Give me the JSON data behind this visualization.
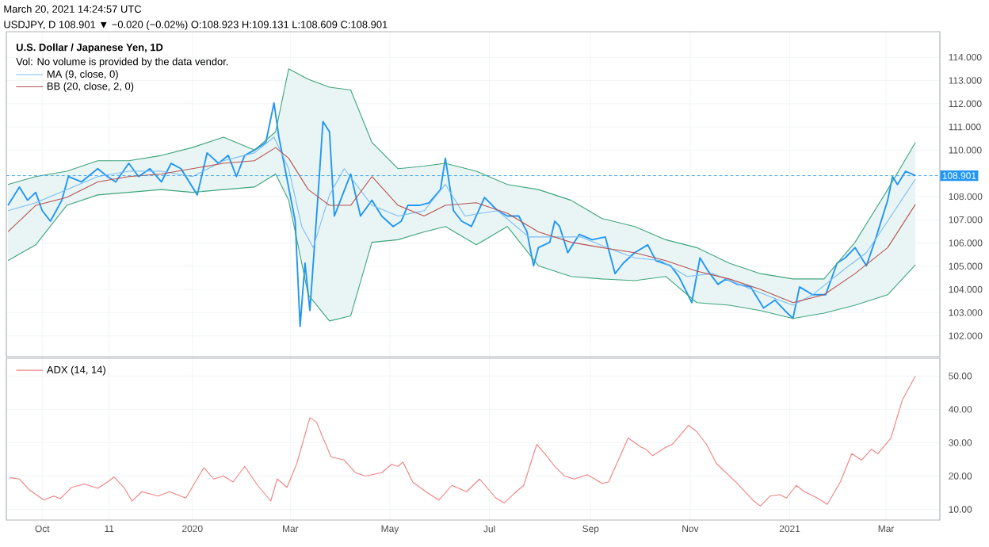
{
  "chart_data": [
    {
      "type": "line",
      "title": "U.S. Dollar / Japanese Yen, 1D",
      "annotations": [
        "March 20, 2021 14:24:57 UTC",
        "USDJPY, D 108.901 ▼ −0.020 (−0.02%) O:108.923 H:109.131 L:108.609 C:108.901",
        "Vol: No volume is provided by the data vendor."
      ],
      "xlim": [
        "2019-09-09",
        "2021-04-03"
      ],
      "xticks": [
        {
          "value": "2019-10-01",
          "label": null
        },
        {
          "value": "2019-11-11",
          "label": null
        },
        {
          "value": "2020-01-01",
          "label": null
        },
        {
          "value": "2020-03-01",
          "label": null
        },
        {
          "value": "2020-05-01",
          "label": null
        },
        {
          "value": "2020-07-01",
          "label": null
        },
        {
          "value": "2020-09-01",
          "label": null
        },
        {
          "value": "2020-11-01",
          "label": null
        },
        {
          "value": "2021-01-01",
          "label": null
        },
        {
          "value": "2021-03-01",
          "label": null
        }
      ],
      "ylim": [
        101.1,
        115.1
      ],
      "yticks": [
        {
          "value": 102,
          "label": "102.000"
        },
        {
          "value": 103,
          "label": "103.000"
        },
        {
          "value": 104,
          "label": "104.000"
        },
        {
          "value": 105,
          "label": "105.000"
        },
        {
          "value": 106,
          "label": "106.000"
        },
        {
          "value": 107,
          "label": "107.000"
        },
        {
          "value": 108,
          "label": "108.000"
        },
        {
          "value": 110,
          "label": "110.000"
        },
        {
          "value": 111,
          "label": "111.000"
        },
        {
          "value": 112,
          "label": "112.000"
        },
        {
          "value": 113,
          "label": "113.000"
        },
        {
          "value": 114,
          "label": "114.000"
        }
      ],
      "grid": true,
      "legend": "top left",
      "tick_labels": "y",
      "ref_lines": [
        {
          "axis": "y",
          "value": 108.901,
          "label": "108.901",
          "color": "#2196f3",
          "line_style": "dashed"
        }
      ],
      "series": [
        {
          "color": "#2196f3",
          "x": [
            "2019-09-10",
            "2019-09-17",
            "2019-09-22",
            "2019-09-27",
            "2019-10-01",
            "2019-10-06",
            "2019-10-13",
            "2019-10-17",
            "2019-10-25",
            "2019-11-04",
            "2019-11-10",
            "2019-11-15",
            "2019-11-23",
            "2019-11-29",
            "2019-12-06",
            "2019-12-13",
            "2019-12-19",
            "2019-12-25",
            "2020-01-04",
            "2020-01-10",
            "2020-01-17",
            "2020-01-23",
            "2020-01-28",
            "2020-02-02",
            "2020-02-08",
            "2020-02-15",
            "2020-02-20",
            "2020-02-23",
            "2020-02-28",
            "2020-03-04",
            "2020-03-07",
            "2020-03-10",
            "2020-03-13",
            "2020-03-18",
            "2020-03-21",
            "2020-03-25",
            "2020-03-28",
            "2020-04-02",
            "2020-04-07",
            "2020-04-13",
            "2020-04-20",
            "2020-04-26",
            "2020-05-03",
            "2020-05-08",
            "2020-05-12",
            "2020-05-19",
            "2020-05-25",
            "2020-06-01",
            "2020-06-04",
            "2020-06-09",
            "2020-06-14",
            "2020-06-20",
            "2020-06-28",
            "2020-07-06",
            "2020-07-12",
            "2020-07-19",
            "2020-07-24",
            "2020-07-28",
            "2020-07-31",
            "2020-08-07",
            "2020-08-10",
            "2020-08-13",
            "2020-08-18",
            "2020-08-25",
            "2020-09-02",
            "2020-09-10",
            "2020-09-16",
            "2020-09-21",
            "2020-09-28",
            "2020-10-06",
            "2020-10-11",
            "2020-10-20",
            "2020-10-25",
            "2020-11-02",
            "2020-11-07",
            "2020-11-12",
            "2020-11-18",
            "2020-11-23",
            "2020-11-30",
            "2020-12-08",
            "2020-12-16",
            "2020-12-23",
            "2020-12-29",
            "2021-01-03",
            "2021-01-07",
            "2021-01-15",
            "2021-01-23",
            "2021-01-30",
            "2021-02-04",
            "2021-02-10",
            "2021-02-17",
            "2021-02-23",
            "2021-03-02",
            "2021-03-05",
            "2021-03-08",
            "2021-03-13",
            "2021-03-19"
          ],
          "values": [
            107.62,
            108.41,
            107.84,
            108.18,
            107.39,
            106.94,
            107.84,
            108.86,
            108.63,
            109.2,
            108.86,
            108.63,
            109.43,
            108.86,
            109.2,
            108.63,
            109.43,
            109.2,
            108.07,
            109.88,
            109.43,
            109.77,
            108.86,
            109.77,
            110.0,
            110.33,
            112.03,
            110.56,
            108.75,
            106.94,
            102.41,
            105.13,
            103.09,
            108.07,
            111.23,
            110.79,
            107.16,
            108.07,
            108.97,
            107.16,
            107.84,
            107.16,
            106.71,
            106.94,
            107.62,
            107.62,
            107.73,
            108.3,
            109.65,
            107.39,
            106.94,
            106.71,
            107.96,
            107.39,
            107.16,
            107.16,
            106.48,
            105.02,
            105.8,
            106.03,
            106.94,
            106.71,
            105.58,
            106.37,
            106.14,
            106.26,
            104.68,
            105.13,
            105.58,
            105.92,
            105.24,
            105.02,
            104.56,
            103.43,
            105.36,
            104.79,
            104.22,
            104.45,
            104.22,
            104.11,
            103.2,
            103.54,
            103.09,
            102.75,
            104.11,
            103.77,
            103.77,
            105.13,
            105.36,
            105.8,
            105.02,
            106.26,
            107.84,
            108.86,
            108.52,
            109.09,
            108.9
          ]
        },
        {
          "name": "MA (9, close, 0)",
          "color": "#7cbcf4",
          "x": [
            "2019-09-10",
            "2019-09-27",
            "2019-10-16",
            "2019-11-04",
            "2019-11-23",
            "2019-12-13",
            "2020-01-01",
            "2020-01-20",
            "2020-02-08",
            "2020-02-20",
            "2020-02-29",
            "2020-03-08",
            "2020-03-15",
            "2020-03-25",
            "2020-04-03",
            "2020-04-20",
            "2020-05-06",
            "2020-05-22",
            "2020-06-04",
            "2020-06-16",
            "2020-06-26",
            "2020-07-06",
            "2020-07-25",
            "2020-08-10",
            "2020-08-26",
            "2020-09-15",
            "2020-09-28",
            "2020-10-14",
            "2020-10-30",
            "2020-11-15",
            "2020-12-01",
            "2020-12-21",
            "2021-01-03",
            "2021-01-15",
            "2021-02-04",
            "2021-02-17",
            "2021-03-02",
            "2021-03-19"
          ],
          "values": [
            107.39,
            107.73,
            108.3,
            108.86,
            109.09,
            109.09,
            108.86,
            109.54,
            109.88,
            110.56,
            109.2,
            106.71,
            105.8,
            108.07,
            109.2,
            107.62,
            107.16,
            107.39,
            108.52,
            107.16,
            107.28,
            107.39,
            106.26,
            106.26,
            106.26,
            105.69,
            105.36,
            105.24,
            104.56,
            104.68,
            104.22,
            103.66,
            103.32,
            103.77,
            104.9,
            105.58,
            106.94,
            108.75
          ]
        },
        {
          "name": "BB (20, close, 2, 0)",
          "color": "#b5524e",
          "x": [
            "2019-09-10",
            "2019-09-27",
            "2019-10-16",
            "2019-11-04",
            "2019-11-23",
            "2019-12-13",
            "2020-01-01",
            "2020-01-20",
            "2020-02-08",
            "2020-02-21",
            "2020-02-29",
            "2020-03-12",
            "2020-03-25",
            "2020-04-07",
            "2020-04-20",
            "2020-05-06",
            "2020-05-22",
            "2020-06-04",
            "2020-06-23",
            "2020-07-12",
            "2020-07-31",
            "2020-08-20",
            "2020-09-08",
            "2020-09-28",
            "2020-10-17",
            "2020-11-05",
            "2020-11-25",
            "2020-12-14",
            "2021-01-03",
            "2021-01-22",
            "2021-02-10",
            "2021-03-02",
            "2021-03-19"
          ],
          "values": [
            106.48,
            107.62,
            107.96,
            108.63,
            108.86,
            108.97,
            109.2,
            109.43,
            109.54,
            110.11,
            109.65,
            108.3,
            107.62,
            107.62,
            108.86,
            107.62,
            107.16,
            107.62,
            107.73,
            107.28,
            106.48,
            106.03,
            105.8,
            105.58,
            105.24,
            104.79,
            104.45,
            104.0,
            103.43,
            103.77,
            104.68,
            105.8,
            107.66
          ],
          "lower": [
            105.24,
            105.92,
            107.62,
            108.07,
            108.18,
            108.3,
            108.18,
            108.3,
            108.41,
            108.97,
            107.84,
            103.77,
            102.64,
            102.86,
            106.03,
            106.14,
            106.48,
            106.71,
            105.92,
            106.71,
            105.02,
            104.56,
            104.45,
            104.38,
            104.56,
            103.43,
            103.32,
            103.09,
            102.75,
            102.98,
            103.32,
            103.77,
            105.06
          ],
          "upper": [
            108.52,
            108.86,
            109.09,
            109.54,
            109.54,
            109.77,
            110.11,
            110.56,
            110.0,
            110.79,
            113.5,
            113.05,
            112.71,
            112.59,
            110.33,
            109.2,
            109.31,
            109.43,
            109.09,
            108.52,
            108.3,
            107.84,
            107.05,
            106.71,
            106.14,
            105.8,
            105.13,
            104.68,
            104.45,
            104.45,
            106.03,
            108.3,
            110.33
          ]
        },
        {
          "color": "#3da57a",
          "x": [
            "2019-09-10",
            "2019-09-27",
            "2019-10-16",
            "2019-11-04",
            "2019-11-23",
            "2019-12-13",
            "2020-01-01",
            "2020-01-20",
            "2020-02-08",
            "2020-02-21",
            "2020-02-29",
            "2020-03-12",
            "2020-03-25",
            "2020-04-07",
            "2020-04-20",
            "2020-05-06",
            "2020-05-22",
            "2020-06-04",
            "2020-06-23",
            "2020-07-12",
            "2020-07-31",
            "2020-08-20",
            "2020-09-08",
            "2020-09-28",
            "2020-10-17",
            "2020-11-05",
            "2020-11-25",
            "2020-12-14",
            "2021-01-03",
            "2021-01-22",
            "2021-02-10",
            "2021-03-02",
            "2021-03-19"
          ],
          "values": [
            108.52,
            108.86,
            109.09,
            109.54,
            109.54,
            109.77,
            110.11,
            110.56,
            110.0,
            110.79,
            113.5,
            113.05,
            112.71,
            112.59,
            110.33,
            109.2,
            109.31,
            109.43,
            109.09,
            108.52,
            108.3,
            107.84,
            107.05,
            106.71,
            106.14,
            105.8,
            105.13,
            104.68,
            104.45,
            104.45,
            106.03,
            108.3,
            110.33
          ]
        },
        {
          "color": "#3da57a",
          "x": [
            "2019-09-10",
            "2019-09-27",
            "2019-10-16",
            "2019-11-04",
            "2019-11-23",
            "2019-12-13",
            "2020-01-01",
            "2020-01-20",
            "2020-02-08",
            "2020-02-21",
            "2020-02-29",
            "2020-03-12",
            "2020-03-25",
            "2020-04-07",
            "2020-04-20",
            "2020-05-06",
            "2020-05-22",
            "2020-06-04",
            "2020-06-23",
            "2020-07-12",
            "2020-07-31",
            "2020-08-20",
            "2020-09-08",
            "2020-09-28",
            "2020-10-17",
            "2020-11-05",
            "2020-11-25",
            "2020-12-14",
            "2021-01-03",
            "2021-01-22",
            "2021-02-10",
            "2021-03-02",
            "2021-03-19"
          ],
          "values": [
            105.24,
            105.92,
            107.62,
            108.07,
            108.18,
            108.3,
            108.18,
            108.3,
            108.41,
            108.97,
            107.84,
            103.77,
            102.64,
            102.86,
            106.03,
            106.14,
            106.48,
            106.71,
            105.92,
            106.71,
            105.02,
            104.56,
            104.45,
            104.38,
            104.56,
            103.43,
            103.32,
            103.09,
            102.75,
            102.98,
            103.32,
            103.77,
            105.06
          ]
        }
      ]
    },
    {
      "type": "line",
      "xlim": [
        "2019-09-09",
        "2021-04-03"
      ],
      "xticks": [
        {
          "value": "2019-10-01",
          "label": "Oct"
        },
        {
          "value": "2019-11-11",
          "label": "11"
        },
        {
          "value": "2020-01-01",
          "label": "2020"
        },
        {
          "value": "2020-03-01",
          "label": "Mar"
        },
        {
          "value": "2020-05-01",
          "label": "May"
        },
        {
          "value": "2020-07-01",
          "label": "Jul"
        },
        {
          "value": "2020-09-01",
          "label": "Sep"
        },
        {
          "value": "2020-11-01",
          "label": "Nov"
        },
        {
          "value": "2021-01-01",
          "label": "2021"
        },
        {
          "value": "2021-03-01",
          "label": "Mar"
        }
      ],
      "ylim": [
        6.8,
        55.3
      ],
      "yticks": [
        {
          "value": 10,
          "label": "10.00"
        },
        {
          "value": 20,
          "label": "20.00"
        },
        {
          "value": 30,
          "label": "30.00"
        },
        {
          "value": 40,
          "label": "40.00"
        },
        {
          "value": 50,
          "label": "50.00"
        }
      ],
      "grid": true,
      "legend": "top left",
      "series": [
        {
          "name": "ADX (14, 14)",
          "color": "#f08080",
          "x": [
            "2019-09-11",
            "2019-09-17",
            "2019-09-23",
            "2019-10-02",
            "2019-10-08",
            "2019-10-12",
            "2019-10-19",
            "2019-10-27",
            "2019-11-04",
            "2019-11-10",
            "2019-11-14",
            "2019-11-20",
            "2019-11-25",
            "2019-12-01",
            "2019-12-11",
            "2019-12-18",
            "2019-12-28",
            "2020-01-08",
            "2020-01-14",
            "2020-01-20",
            "2020-01-26",
            "2020-02-02",
            "2020-02-10",
            "2020-02-18",
            "2020-02-22",
            "2020-02-28",
            "2020-03-05",
            "2020-03-13",
            "2020-03-17",
            "2020-03-26",
            "2020-04-03",
            "2020-04-10",
            "2020-04-16",
            "2020-04-26",
            "2020-05-02",
            "2020-05-06",
            "2020-05-09",
            "2020-05-15",
            "2020-05-23",
            "2020-05-31",
            "2020-06-08",
            "2020-06-17",
            "2020-06-25",
            "2020-07-05",
            "2020-07-10",
            "2020-07-16",
            "2020-07-22",
            "2020-07-30",
            "2020-08-04",
            "2020-08-10",
            "2020-08-16",
            "2020-08-22",
            "2020-08-30",
            "2020-09-08",
            "2020-09-12",
            "2020-09-24",
            "2020-10-02",
            "2020-10-05",
            "2020-10-09",
            "2020-10-17",
            "2020-10-21",
            "2020-10-31",
            "2020-11-05",
            "2020-11-11",
            "2020-11-17",
            "2020-11-29",
            "2020-12-10",
            "2020-12-14",
            "2020-12-20",
            "2020-12-26",
            "2020-12-30",
            "2021-01-05",
            "2021-01-10",
            "2021-01-18",
            "2021-01-24",
            "2021-02-01",
            "2021-02-08",
            "2021-02-14",
            "2021-02-20",
            "2021-02-24",
            "2021-03-04",
            "2021-03-11",
            "2021-03-19"
          ],
          "values": [
            19.5,
            19.1,
            15.9,
            12.8,
            14.0,
            13.2,
            16.6,
            17.6,
            16.3,
            18.2,
            19.7,
            16.6,
            12.5,
            15.3,
            14.0,
            15.3,
            13.4,
            22.5,
            19.1,
            20.0,
            18.2,
            22.9,
            17.2,
            12.5,
            19.1,
            16.6,
            23.8,
            37.5,
            36.2,
            25.7,
            24.8,
            21.0,
            20.0,
            21.0,
            23.5,
            22.9,
            24.2,
            18.2,
            15.3,
            12.8,
            17.2,
            15.3,
            19.1,
            13.4,
            11.9,
            14.7,
            17.2,
            29.5,
            26.7,
            22.9,
            20.0,
            19.1,
            20.4,
            17.8,
            18.2,
            31.4,
            28.6,
            28.0,
            26.1,
            28.6,
            29.5,
            35.2,
            33.3,
            29.5,
            23.8,
            18.2,
            12.5,
            11.0,
            14.0,
            14.4,
            13.4,
            17.2,
            15.3,
            13.4,
            11.5,
            18.2,
            26.7,
            24.8,
            28.0,
            26.7,
            31.4,
            42.8,
            50.0
          ]
        }
      ]
    }
  ]
}
